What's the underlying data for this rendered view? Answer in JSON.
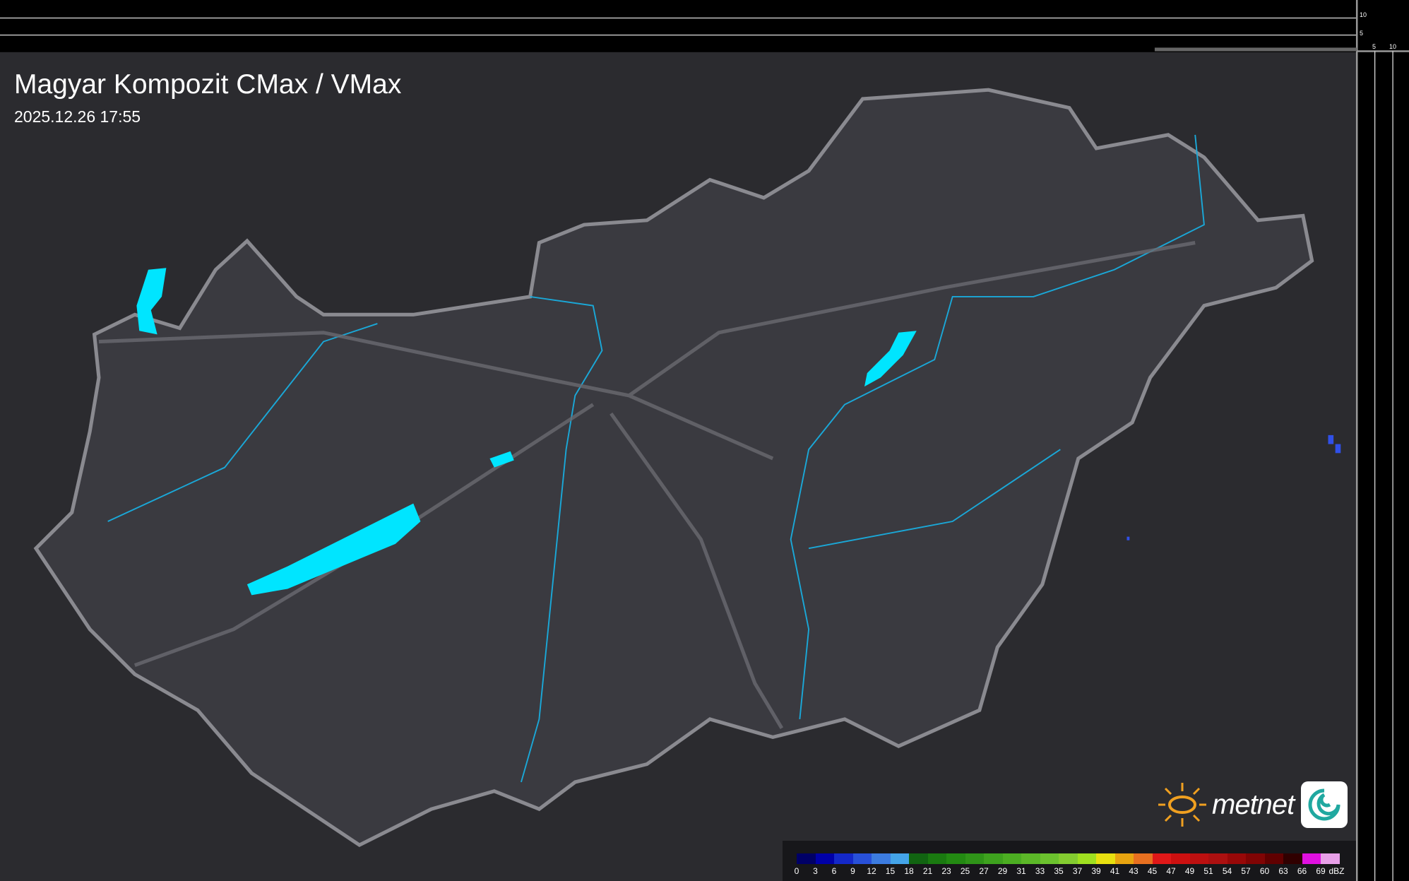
{
  "header": {
    "title": "Magyar Kompozit CMax / VMax",
    "timestamp": "2025.12.26 17:55"
  },
  "logo": {
    "text": "metnet"
  },
  "side_scale": {
    "top_ticks": [
      "10",
      "5"
    ],
    "right_ticks": [
      "5",
      "10"
    ]
  },
  "legend": {
    "unit": "dBZ",
    "labels": [
      "0",
      "3",
      "6",
      "9",
      "12",
      "15",
      "18",
      "21",
      "23",
      "25",
      "27",
      "29",
      "31",
      "33",
      "35",
      "37",
      "39",
      "41",
      "43",
      "45",
      "47",
      "49",
      "51",
      "54",
      "57",
      "60",
      "63",
      "66",
      "69"
    ],
    "colors": [
      "#000066",
      "#0000a8",
      "#1428c8",
      "#2850d8",
      "#3c7ce0",
      "#44a4e8",
      "#116411",
      "#1a7a10",
      "#238a12",
      "#2f9418",
      "#3ea21e",
      "#4cae22",
      "#5cb828",
      "#6cc22e",
      "#84cc30",
      "#a0e020",
      "#e8e010",
      "#e8a410",
      "#e87020",
      "#e01818",
      "#cc1010",
      "#bc1010",
      "#ac1010",
      "#980808",
      "#800404",
      "#600000",
      "#300000",
      "#e010e0",
      "#e8a0e8",
      "#88e4e8"
    ]
  },
  "map": {
    "land_color": "#3a3a40",
    "border_color": "#8a8a90",
    "water_color": "#00e5ff",
    "river_color": "#1aa8d8"
  }
}
